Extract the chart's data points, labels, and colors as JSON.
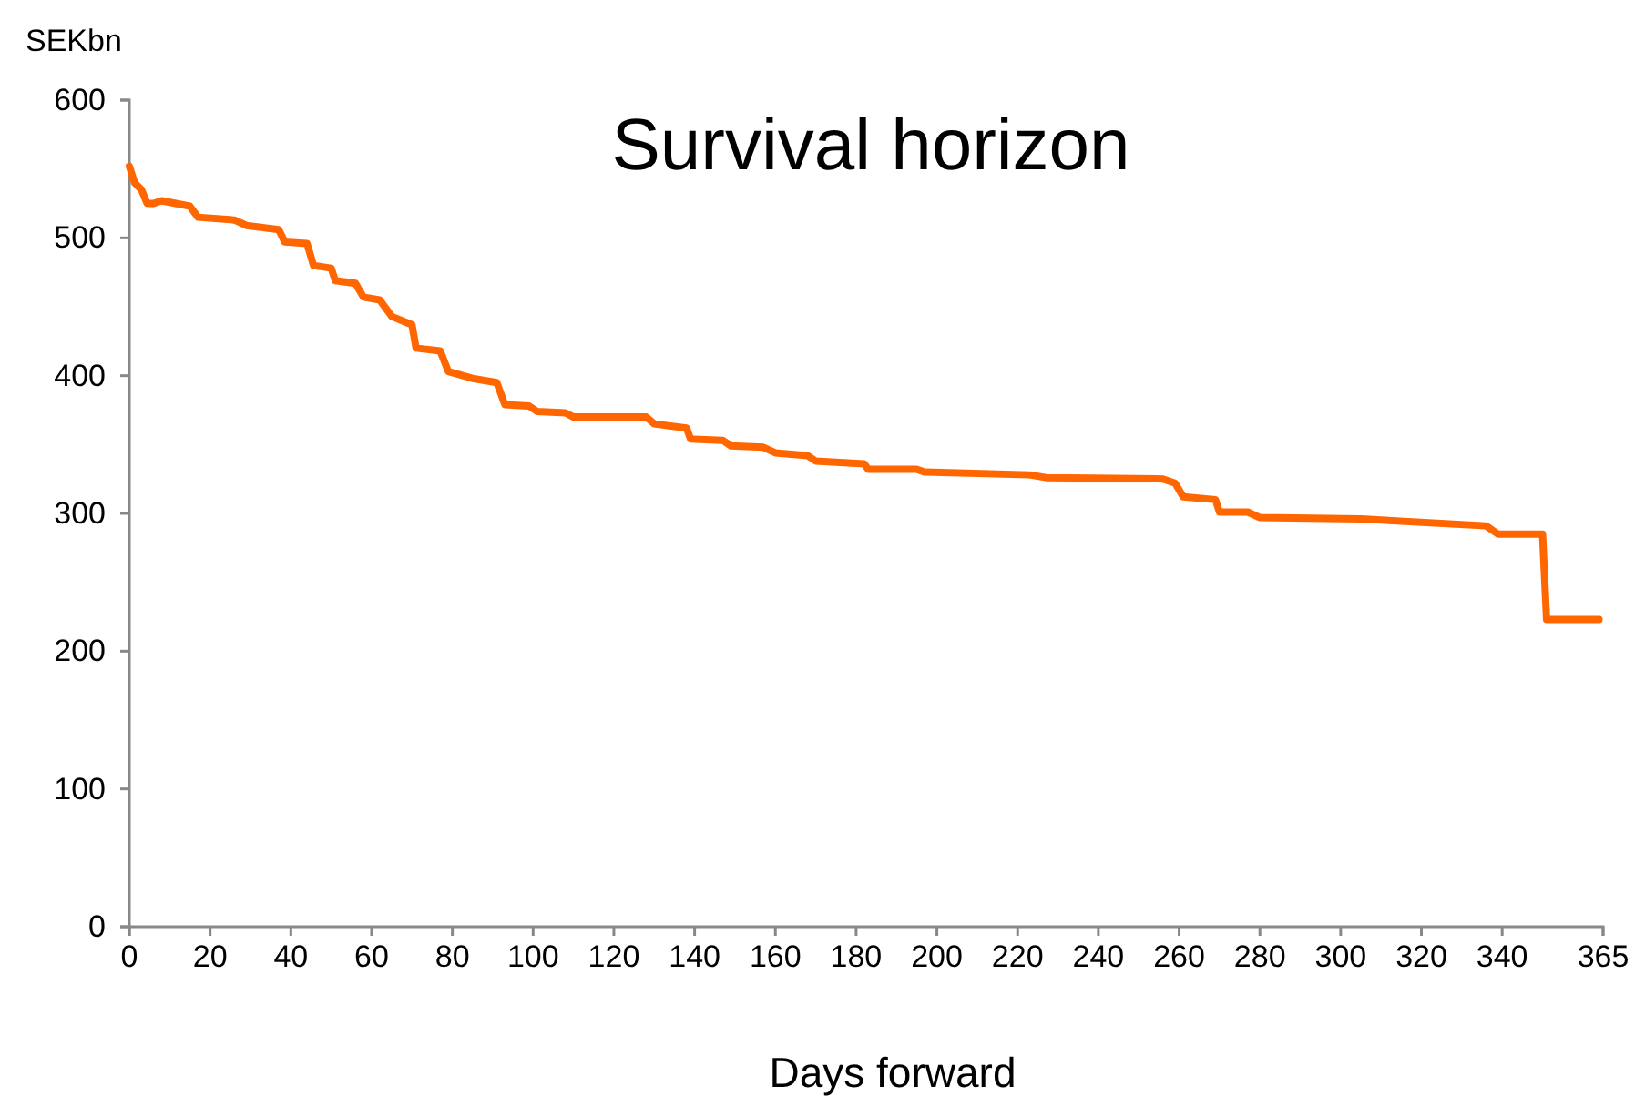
{
  "chart_data": {
    "type": "line",
    "title": "Survival horizon",
    "xlabel": "Days forward",
    "ylabel": "SEKbn",
    "xlim": [
      0,
      365
    ],
    "xticks": [
      0,
      20,
      40,
      60,
      80,
      100,
      120,
      140,
      160,
      180,
      200,
      220,
      240,
      260,
      280,
      300,
      320,
      340,
      365
    ],
    "ylim": [
      0,
      600
    ],
    "yticks": [
      0,
      100,
      200,
      300,
      400,
      500,
      600
    ],
    "grid": false,
    "marker": "none",
    "line_style": "solid",
    "series": [
      {
        "color": "#ff6600",
        "x": [
          0,
          1.3,
          3,
          4.4,
          6,
          8,
          15,
          17,
          26,
          29,
          37,
          38.5,
          44,
          45.6,
          50,
          51,
          56,
          58,
          62,
          65,
          70,
          71,
          77,
          79,
          85,
          91,
          93,
          99,
          101,
          108,
          110,
          128,
          130,
          138,
          139,
          147,
          149,
          157,
          160,
          168,
          170,
          182,
          183,
          195,
          197,
          223,
          227,
          256,
          259,
          261,
          269,
          270,
          277,
          280,
          305,
          336,
          339,
          350,
          351,
          364
        ],
        "values": [
          552,
          540,
          535,
          525,
          525,
          527,
          523,
          515,
          513,
          509,
          506,
          497,
          496,
          480,
          478,
          469,
          467,
          457,
          455,
          443,
          437,
          420,
          418,
          403,
          398,
          395,
          379,
          378,
          374,
          373,
          370,
          370,
          365,
          362,
          354,
          353,
          349,
          348,
          344,
          342,
          338,
          336,
          332,
          332,
          330,
          328,
          326,
          325,
          322,
          312,
          310,
          301,
          301,
          297,
          296,
          291,
          285,
          285,
          223,
          223
        ]
      }
    ]
  }
}
